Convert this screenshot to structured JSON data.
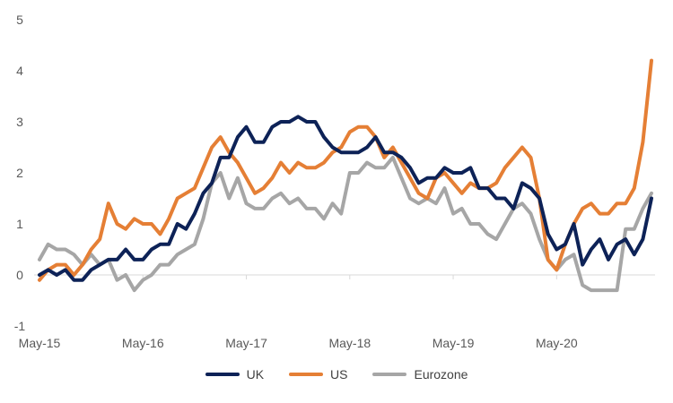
{
  "chart_data": {
    "type": "line",
    "title": "",
    "xlabel": "",
    "ylabel": "",
    "ylim": [
      -1,
      5
    ],
    "y_ticks": [
      "-1",
      "0",
      "1",
      "2",
      "3",
      "4",
      "5"
    ],
    "x_tick_labels": [
      "May-15",
      "May-16",
      "May-17",
      "May-18",
      "May-19",
      "May-20"
    ],
    "grid": false,
    "legend_position": "bottom",
    "x": [
      "May-15",
      "Jun-15",
      "Jul-15",
      "Aug-15",
      "Sep-15",
      "Oct-15",
      "Nov-15",
      "Dec-15",
      "Jan-16",
      "Feb-16",
      "Mar-16",
      "Apr-16",
      "May-16",
      "Jun-16",
      "Jul-16",
      "Aug-16",
      "Sep-16",
      "Oct-16",
      "Nov-16",
      "Dec-16",
      "Jan-17",
      "Feb-17",
      "Mar-17",
      "Apr-17",
      "May-17",
      "Jun-17",
      "Jul-17",
      "Aug-17",
      "Sep-17",
      "Oct-17",
      "Nov-17",
      "Dec-17",
      "Jan-18",
      "Feb-18",
      "Mar-18",
      "Apr-18",
      "May-18",
      "Jun-18",
      "Jul-18",
      "Aug-18",
      "Sep-18",
      "Oct-18",
      "Nov-18",
      "Dec-18",
      "Jan-19",
      "Feb-19",
      "Mar-19",
      "Apr-19",
      "May-19",
      "Jun-19",
      "Jul-19",
      "Aug-19",
      "Sep-19",
      "Oct-19",
      "Nov-19",
      "Dec-19",
      "Jan-20",
      "Feb-20",
      "Mar-20",
      "Apr-20",
      "May-20",
      "Jun-20",
      "Jul-20",
      "Aug-20",
      "Sep-20",
      "Oct-20",
      "Nov-20",
      "Dec-20",
      "Jan-21",
      "Feb-21",
      "Mar-21",
      "Apr-21"
    ],
    "series": [
      {
        "name": "UK",
        "color": "#0d2257",
        "values": [
          0.0,
          0.1,
          0.0,
          0.1,
          -0.1,
          -0.1,
          0.1,
          0.2,
          0.3,
          0.3,
          0.5,
          0.3,
          0.3,
          0.5,
          0.6,
          0.6,
          1.0,
          0.9,
          1.2,
          1.6,
          1.8,
          2.3,
          2.3,
          2.7,
          2.9,
          2.6,
          2.6,
          2.9,
          3.0,
          3.0,
          3.1,
          3.0,
          3.0,
          2.7,
          2.5,
          2.4,
          2.4,
          2.4,
          2.5,
          2.7,
          2.4,
          2.4,
          2.3,
          2.1,
          1.8,
          1.9,
          1.9,
          2.1,
          2.0,
          2.0,
          2.1,
          1.7,
          1.7,
          1.5,
          1.5,
          1.3,
          1.8,
          1.7,
          1.5,
          0.8,
          0.5,
          0.6,
          1.0,
          0.2,
          0.5,
          0.7,
          0.3,
          0.6,
          0.7,
          0.4,
          0.7,
          1.5
        ]
      },
      {
        "name": "US",
        "color": "#e57f35",
        "values": [
          -0.1,
          0.1,
          0.2,
          0.2,
          0.0,
          0.2,
          0.5,
          0.7,
          1.4,
          1.0,
          0.9,
          1.1,
          1.0,
          1.0,
          0.8,
          1.1,
          1.5,
          1.6,
          1.7,
          2.1,
          2.5,
          2.7,
          2.4,
          2.2,
          1.9,
          1.6,
          1.7,
          1.9,
          2.2,
          2.0,
          2.2,
          2.1,
          2.1,
          2.2,
          2.4,
          2.5,
          2.8,
          2.9,
          2.9,
          2.7,
          2.3,
          2.5,
          2.2,
          1.9,
          1.6,
          1.5,
          1.9,
          2.0,
          1.8,
          1.6,
          1.8,
          1.7,
          1.7,
          1.8,
          2.1,
          2.3,
          2.5,
          2.3,
          1.5,
          0.3,
          0.1,
          0.6,
          1.0,
          1.3,
          1.4,
          1.2,
          1.2,
          1.4,
          1.4,
          1.7,
          2.6,
          4.2
        ]
      },
      {
        "name": "Eurozone",
        "color": "#a6a6a6",
        "values": [
          0.3,
          0.6,
          0.5,
          0.5,
          0.4,
          0.2,
          0.4,
          0.2,
          0.3,
          -0.1,
          0.0,
          -0.3,
          -0.1,
          0.0,
          0.2,
          0.2,
          0.4,
          0.5,
          0.6,
          1.1,
          1.8,
          2.0,
          1.5,
          1.9,
          1.4,
          1.3,
          1.3,
          1.5,
          1.6,
          1.4,
          1.5,
          1.3,
          1.3,
          1.1,
          1.4,
          1.2,
          2.0,
          2.0,
          2.2,
          2.1,
          2.1,
          2.3,
          1.9,
          1.5,
          1.4,
          1.5,
          1.4,
          1.7,
          1.2,
          1.3,
          1.0,
          1.0,
          0.8,
          0.7,
          1.0,
          1.3,
          1.4,
          1.2,
          0.7,
          0.3,
          0.1,
          0.3,
          0.4,
          -0.2,
          -0.3,
          -0.3,
          -0.3,
          -0.3,
          0.9,
          0.9,
          1.3,
          1.6
        ]
      }
    ]
  }
}
